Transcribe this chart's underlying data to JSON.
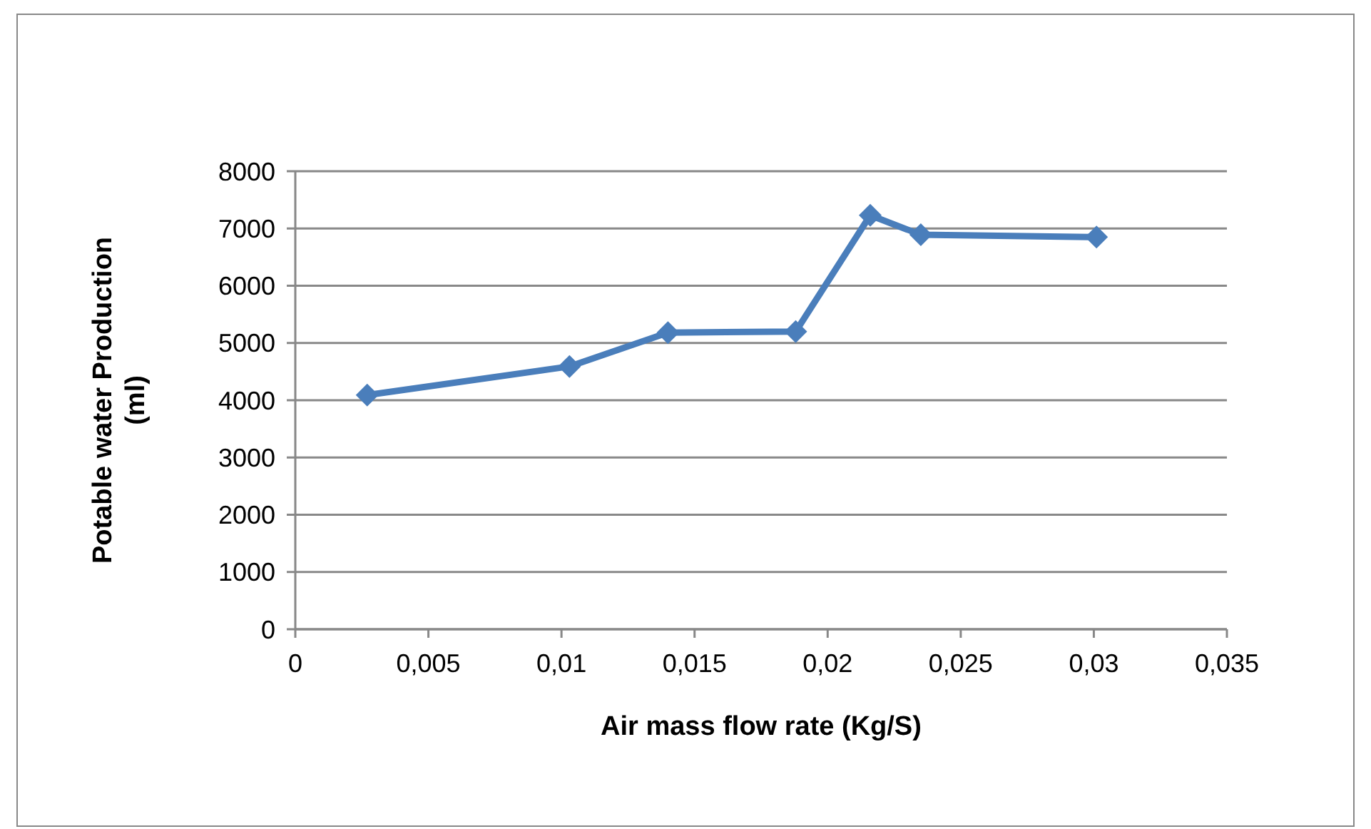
{
  "chart_data": {
    "type": "line",
    "xlabel": "Air mass flow rate (Kg/S)",
    "ylabel": "Potable water Production (ml)",
    "x": [
      0.0027,
      0.0103,
      0.014,
      0.0188,
      0.0216,
      0.0235,
      0.0301
    ],
    "series": [
      {
        "color": "#4a7ebb",
        "values": [
          4090,
          4590,
          5180,
          5200,
          7230,
          6890,
          6850
        ]
      }
    ],
    "xlim": [
      0,
      0.035
    ],
    "xticks": [
      0,
      {
        "value": 0.005,
        "label": "0,005"
      },
      {
        "value": 0.01,
        "label": "0,01"
      },
      {
        "value": 0.015,
        "label": "0,015"
      },
      {
        "value": 0.02,
        "label": "0,02"
      },
      {
        "value": 0.025,
        "label": "0,025"
      },
      {
        "value": 0.03,
        "label": "0,03"
      },
      {
        "value": 0.035,
        "label": "0,035"
      }
    ],
    "ylim": [
      0,
      8000
    ],
    "yticks": [
      0,
      1000,
      2000,
      3000,
      4000,
      5000,
      6000,
      7000,
      8000
    ],
    "grid": "y",
    "marker": "diamond",
    "line_style": "solid"
  }
}
